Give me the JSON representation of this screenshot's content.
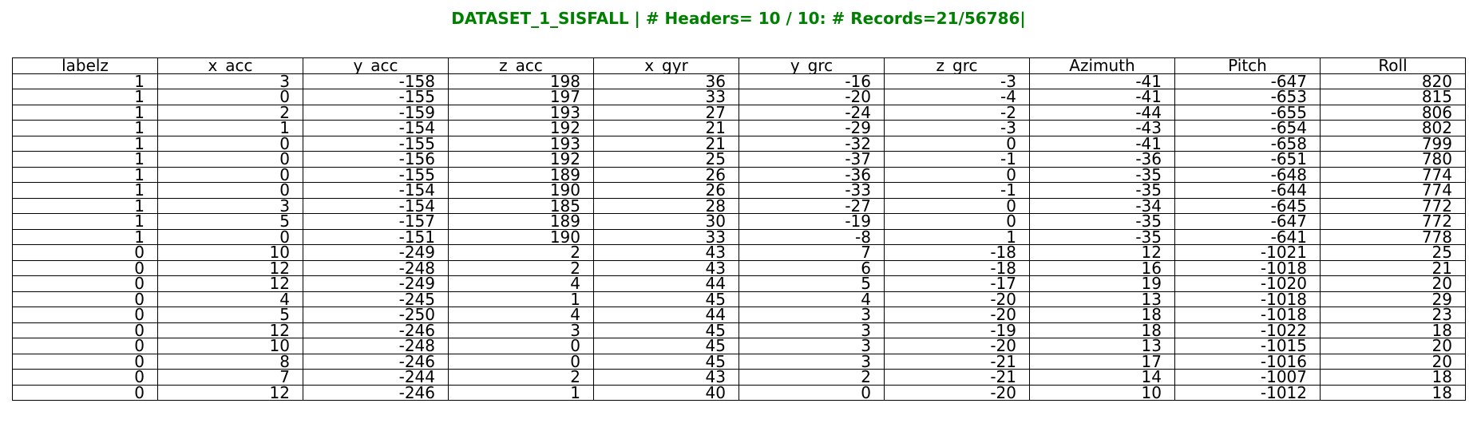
{
  "chart_data": {
    "type": "table",
    "title": "DATASET_1_SISFALL | # Headers= 10 / 10: # Records=21/56786|",
    "columns": [
      "labelz",
      "x_acc",
      "y_acc",
      "z_acc",
      "x_gyr",
      "y_grc",
      "z_grc",
      "Azimuth",
      "Pitch",
      "Roll"
    ],
    "rows": [
      [
        "1",
        "3",
        "-158",
        "198",
        "36",
        "-16",
        "-3",
        "-41",
        "-647",
        "820"
      ],
      [
        "1",
        "0",
        "-155",
        "197",
        "33",
        "-20",
        "-4",
        "-41",
        "-653",
        "815"
      ],
      [
        "1",
        "2",
        "-159",
        "193",
        "27",
        "-24",
        "-2",
        "-44",
        "-655",
        "806"
      ],
      [
        "1",
        "1",
        "-154",
        "192",
        "21",
        "-29",
        "-3",
        "-43",
        "-654",
        "802"
      ],
      [
        "1",
        "0",
        "-155",
        "193",
        "21",
        "-32",
        "0",
        "-41",
        "-658",
        "799"
      ],
      [
        "1",
        "0",
        "-156",
        "192",
        "25",
        "-37",
        "-1",
        "-36",
        "-651",
        "780"
      ],
      [
        "1",
        "0",
        "-155",
        "189",
        "26",
        "-36",
        "0",
        "-35",
        "-648",
        "774"
      ],
      [
        "1",
        "0",
        "-154",
        "190",
        "26",
        "-33",
        "-1",
        "-35",
        "-644",
        "774"
      ],
      [
        "1",
        "3",
        "-154",
        "185",
        "28",
        "-27",
        "0",
        "-34",
        "-645",
        "772"
      ],
      [
        "1",
        "5",
        "-157",
        "189",
        "30",
        "-19",
        "0",
        "-35",
        "-647",
        "772"
      ],
      [
        "1",
        "0",
        "-151",
        "190",
        "33",
        "-8",
        "1",
        "-35",
        "-641",
        "778"
      ],
      [
        "0",
        "10",
        "-249",
        "2",
        "43",
        "7",
        "-18",
        "12",
        "-1021",
        "25"
      ],
      [
        "0",
        "12",
        "-248",
        "2",
        "43",
        "6",
        "-18",
        "16",
        "-1018",
        "21"
      ],
      [
        "0",
        "12",
        "-249",
        "4",
        "44",
        "5",
        "-17",
        "19",
        "-1020",
        "20"
      ],
      [
        "0",
        "4",
        "-245",
        "1",
        "45",
        "4",
        "-20",
        "13",
        "-1018",
        "29"
      ],
      [
        "0",
        "5",
        "-250",
        "4",
        "44",
        "3",
        "-20",
        "18",
        "-1018",
        "23"
      ],
      [
        "0",
        "12",
        "-246",
        "3",
        "45",
        "3",
        "-19",
        "18",
        "-1022",
        "18"
      ],
      [
        "0",
        "10",
        "-248",
        "0",
        "45",
        "3",
        "-20",
        "13",
        "-1015",
        "20"
      ],
      [
        "0",
        "8",
        "-246",
        "0",
        "45",
        "3",
        "-21",
        "17",
        "-1016",
        "20"
      ],
      [
        "0",
        "7",
        "-244",
        "2",
        "43",
        "2",
        "-21",
        "14",
        "-1007",
        "18"
      ],
      [
        "0",
        "12",
        "-246",
        "1",
        "40",
        "0",
        "-20",
        "10",
        "-1012",
        "18"
      ]
    ],
    "colors": {
      "title": "#008000",
      "border": "#000000",
      "text": "#000000",
      "background": "#ffffff"
    }
  }
}
